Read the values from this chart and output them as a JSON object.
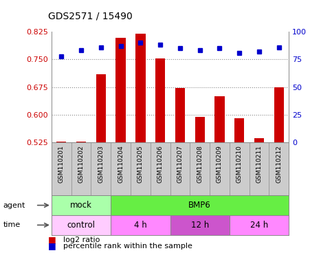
{
  "title": "GDS2571 / 15490",
  "samples": [
    "GSM110201",
    "GSM110202",
    "GSM110203",
    "GSM110204",
    "GSM110205",
    "GSM110206",
    "GSM110207",
    "GSM110208",
    "GSM110209",
    "GSM110210",
    "GSM110211",
    "GSM110212"
  ],
  "log2_ratio": [
    0.527,
    0.527,
    0.71,
    0.808,
    0.82,
    0.752,
    0.672,
    0.595,
    0.65,
    0.59,
    0.536,
    0.675
  ],
  "percentile": [
    78,
    83,
    86,
    87,
    90,
    88,
    85,
    83,
    85,
    81,
    82,
    86
  ],
  "ylim_left": [
    0.525,
    0.825
  ],
  "yticks_left": [
    0.525,
    0.6,
    0.675,
    0.75,
    0.825
  ],
  "ylim_right": [
    0,
    100
  ],
  "yticks_right": [
    0,
    25,
    50,
    75,
    100
  ],
  "bar_color": "#cc0000",
  "dot_color": "#0000cc",
  "bar_baseline": 0.525,
  "agent_groups": [
    {
      "label": "mock",
      "start": 0,
      "end": 3,
      "color": "#aaffaa"
    },
    {
      "label": "BMP6",
      "start": 3,
      "end": 12,
      "color": "#66ee44"
    }
  ],
  "time_groups": [
    {
      "label": "control",
      "start": 0,
      "end": 3,
      "color": "#ffccff"
    },
    {
      "label": "4 h",
      "start": 3,
      "end": 6,
      "color": "#ff88ff"
    },
    {
      "label": "12 h",
      "start": 6,
      "end": 9,
      "color": "#cc55cc"
    },
    {
      "label": "24 h",
      "start": 9,
      "end": 12,
      "color": "#ff88ff"
    }
  ],
  "grid_color": "#888888",
  "tick_label_color_left": "#cc0000",
  "tick_label_color_right": "#0000cc",
  "bg_color": "#ffffff",
  "sample_bg_color": "#cccccc",
  "border_color": "#888888"
}
